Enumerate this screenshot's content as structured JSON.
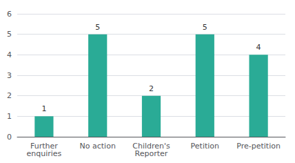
{
  "chart_data": {
    "type": "bar",
    "categories": [
      "Further\nenquiries",
      "No action",
      "Children's\nReporter",
      "Petition",
      "Pre-petition"
    ],
    "values": [
      1,
      5,
      2,
      5,
      4
    ],
    "color": "#2aab96",
    "ylim": [
      0,
      6
    ],
    "yticks": [
      0,
      1,
      2,
      3,
      4,
      5,
      6
    ],
    "grid": true,
    "data_labels": true
  }
}
